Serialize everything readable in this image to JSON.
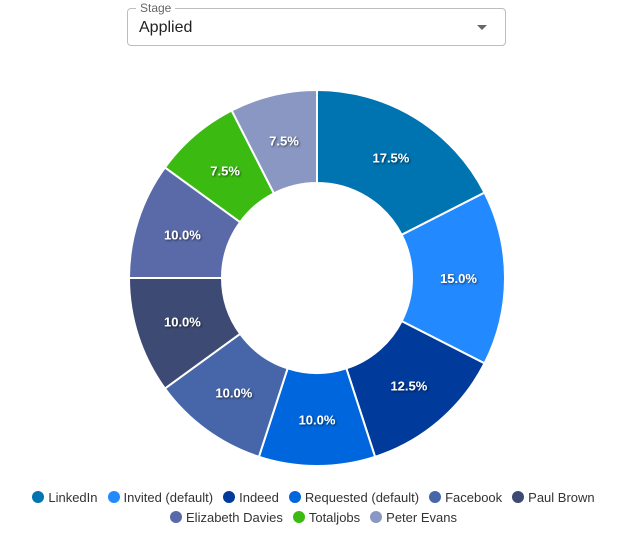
{
  "stage_select": {
    "label": "Stage",
    "value": "Applied"
  },
  "chart_data": {
    "type": "pie",
    "subtype": "donut",
    "title": "",
    "categories": [
      "LinkedIn",
      "Invited (default)",
      "Indeed",
      "Requested (default)",
      "Facebook",
      "Paul Brown",
      "Elizabeth Davies",
      "Totaljobs",
      "Peter Evans"
    ],
    "values": [
      17.5,
      15.0,
      12.5,
      10.0,
      10.0,
      10.0,
      10.0,
      7.5,
      7.5
    ],
    "labels": [
      "17.5%",
      "15.0%",
      "12.5%",
      "10.0%",
      "10.0%",
      "10.0%",
      "10.0%",
      "7.5%",
      "7.5%"
    ],
    "colors": [
      "#0073b1",
      "#2389ff",
      "#003a9b",
      "#0066dd",
      "#4766a9",
      "#3d4a73",
      "#5a6aa8",
      "#3bbb12",
      "#8a97c2"
    ],
    "legend_position": "bottom",
    "unit": "%"
  },
  "legend": {
    "rows": [
      [
        {
          "label": "LinkedIn",
          "color": "#0073b1"
        },
        {
          "label": "Invited (default)",
          "color": "#2389ff"
        },
        {
          "label": "Indeed",
          "color": "#003a9b"
        },
        {
          "label": "Requested (default)",
          "color": "#0066dd"
        },
        {
          "label": "Facebook",
          "color": "#4766a9"
        },
        {
          "label": "Paul Brown",
          "color": "#3d4a73"
        }
      ],
      [
        {
          "label": "Elizabeth Davies",
          "color": "#5a6aa8"
        },
        {
          "label": "Totaljobs",
          "color": "#3bbb12"
        },
        {
          "label": "Peter Evans",
          "color": "#8a97c2"
        }
      ]
    ]
  }
}
